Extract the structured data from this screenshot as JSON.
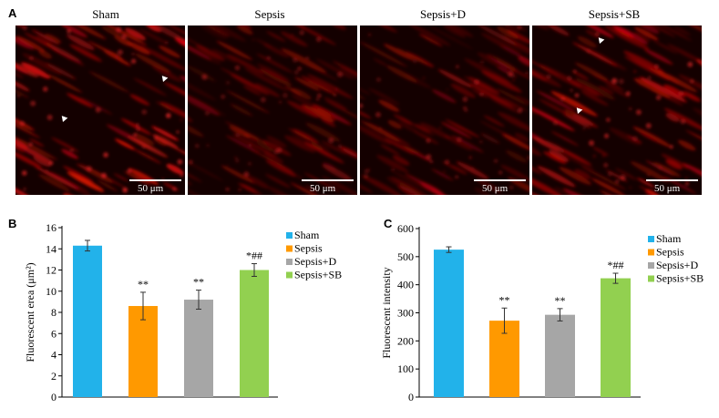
{
  "panel_a": {
    "letter": "A",
    "images": [
      {
        "title": "Sham",
        "scale": "50 μm"
      },
      {
        "title": "Sepsis",
        "scale": "50 μm"
      },
      {
        "title": "Sepsis+D",
        "scale": "50 μm"
      },
      {
        "title": "Sepsis+SB",
        "scale": "50 μm"
      }
    ]
  },
  "colors": {
    "Sham": "#22b2ea",
    "Sepsis": "#ff9900",
    "Sepsis+D": "#a6a6a6",
    "Sepsis+SB": "#92d050"
  },
  "chart_data": [
    {
      "type": "bar",
      "panel_letter": "B",
      "categories": [
        "Sham",
        "Sepsis",
        "Sepsis+D",
        "Sepsis+SB"
      ],
      "values": [
        14.3,
        8.6,
        9.2,
        12.0
      ],
      "errors": [
        0.5,
        1.3,
        0.9,
        0.6
      ],
      "annotations": [
        "",
        "**",
        "**",
        "*##"
      ],
      "ylabel": "Fluorescent erea (μm²)",
      "ylim": [
        0,
        16
      ],
      "yticks": [
        0,
        2,
        4,
        6,
        8,
        10,
        12,
        14,
        16
      ],
      "legend": [
        "Sham",
        "Sepsis",
        "Sepsis+D",
        "Sepsis+SB"
      ],
      "legend_position": "right"
    },
    {
      "type": "bar",
      "panel_letter": "C",
      "categories": [
        "Sham",
        "Sepsis",
        "Sepsis+D",
        "Sepsis+SB"
      ],
      "values": [
        525,
        272,
        293,
        423
      ],
      "errors": [
        10,
        45,
        22,
        18
      ],
      "annotations": [
        "",
        "**",
        "**",
        "*##"
      ],
      "ylabel": "Fluorescent intensity",
      "ylim": [
        0,
        600
      ],
      "yticks": [
        0,
        100,
        200,
        300,
        400,
        500,
        600
      ],
      "legend": [
        "Sham",
        "Sepsis",
        "Sepsis+D",
        "Sepsis+SB"
      ],
      "legend_position": "right"
    }
  ]
}
